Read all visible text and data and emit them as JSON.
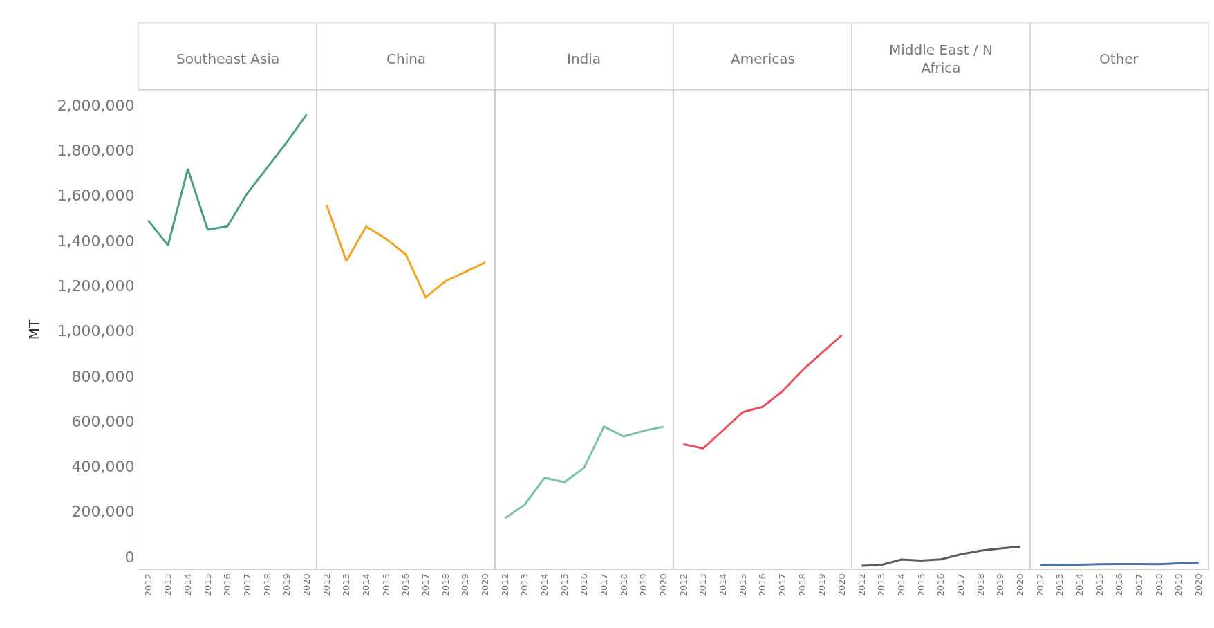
{
  "chart_data": [
    {
      "type": "line",
      "title": "Southeast Asia",
      "ylabel": "MT",
      "categories": [
        "2012",
        "2013",
        "2014",
        "2015",
        "2016",
        "2017",
        "2018",
        "2019",
        "2020"
      ],
      "series": [
        {
          "color": "#4a9e7f",
          "values": [
            1490000,
            1380000,
            1718000,
            1449000,
            1464000,
            1610000,
            1723000,
            1837000,
            1960000
          ]
        }
      ],
      "ylim": [
        -55000,
        2068000
      ],
      "yticks": [
        {
          "value": 0,
          "label": "0"
        },
        {
          "value": 200000,
          "label": "200,000"
        },
        {
          "value": 400000,
          "label": "400,000"
        },
        {
          "value": 600000,
          "label": "600,000"
        },
        {
          "value": 800000,
          "label": "800,000"
        },
        {
          "value": 1000000,
          "label": "1,000,000"
        },
        {
          "value": 1200000,
          "label": "1,200,000"
        },
        {
          "value": 1400000,
          "label": "1,400,000"
        },
        {
          "value": 1600000,
          "label": "1,600,000"
        },
        {
          "value": 1800000,
          "label": "1,800,000"
        },
        {
          "value": 2000000,
          "label": "2,000,000"
        }
      ]
    },
    {
      "type": "line",
      "title": "China",
      "categories": [
        "2012",
        "2013",
        "2014",
        "2015",
        "2016",
        "2017",
        "2018",
        "2019",
        "2020"
      ],
      "series": [
        {
          "color": "#f4a221",
          "values": [
            1559000,
            1310000,
            1463000,
            1409000,
            1339000,
            1149000,
            1221000,
            1262000,
            1304000
          ]
        }
      ],
      "ylim": [
        -55000,
        2068000
      ],
      "tick_labels": "x"
    },
    {
      "type": "line",
      "title": "India",
      "categories": [
        "2012",
        "2013",
        "2014",
        "2015",
        "2016",
        "2017",
        "2018",
        "2019",
        "2020"
      ],
      "series": [
        {
          "color": "#78c1b0",
          "values": [
            171000,
            231000,
            350000,
            330000,
            395000,
            577000,
            533000,
            558000,
            576000
          ]
        }
      ],
      "ylim": [
        -55000,
        2068000
      ],
      "tick_labels": "x"
    },
    {
      "type": "line",
      "title": "Americas",
      "categories": [
        "2012",
        "2013",
        "2014",
        "2015",
        "2016",
        "2017",
        "2018",
        "2019",
        "2020"
      ],
      "series": [
        {
          "color": "#e9505c",
          "values": [
            499000,
            480000,
            560000,
            641000,
            664000,
            733000,
            825000,
            904000,
            982000
          ]
        }
      ],
      "ylim": [
        -55000,
        2068000
      ],
      "tick_labels": "x"
    },
    {
      "type": "line",
      "title": "Middle East / N Africa",
      "categories": [
        "2012",
        "2013",
        "2014",
        "2015",
        "2016",
        "2017",
        "2018",
        "2019",
        "2020"
      ],
      "series": [
        {
          "color": "#5b5b5b",
          "values": [
            -40000,
            -36000,
            -12000,
            -17000,
            -11000,
            11000,
            27000,
            37000,
            45000
          ]
        }
      ],
      "ylim": [
        -55000,
        2068000
      ],
      "tick_labels": "x"
    },
    {
      "type": "line",
      "title": "Other",
      "categories": [
        "2012",
        "2013",
        "2014",
        "2015",
        "2016",
        "2017",
        "2018",
        "2019",
        "2020"
      ],
      "series": [
        {
          "color": "#4a70b2",
          "values": [
            -38000,
            -36000,
            -35000,
            -33000,
            -32000,
            -32000,
            -33000,
            -29000,
            -26000
          ]
        }
      ],
      "ylim": [
        -55000,
        2068000
      ],
      "tick_labels": "x"
    }
  ]
}
